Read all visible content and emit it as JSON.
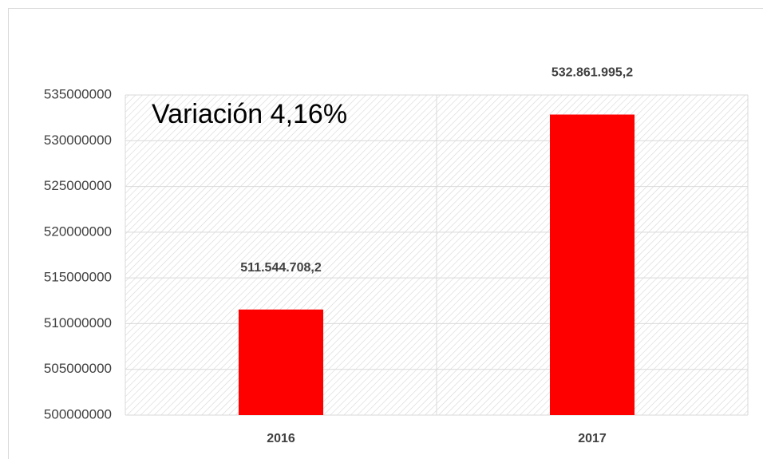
{
  "chart_data": {
    "type": "bar",
    "annotation": "Variación 4,16%",
    "categories": [
      "2016",
      "2017"
    ],
    "values": [
      511544708.2,
      532861995.2
    ],
    "value_labels": [
      "511.544.708,2",
      "532.861.995,2"
    ],
    "color": "#ff0000",
    "ylim": [
      500000000,
      535000000
    ],
    "yticks": [
      500000000,
      505000000,
      510000000,
      515000000,
      520000000,
      525000000,
      530000000,
      535000000
    ],
    "grid": true
  }
}
